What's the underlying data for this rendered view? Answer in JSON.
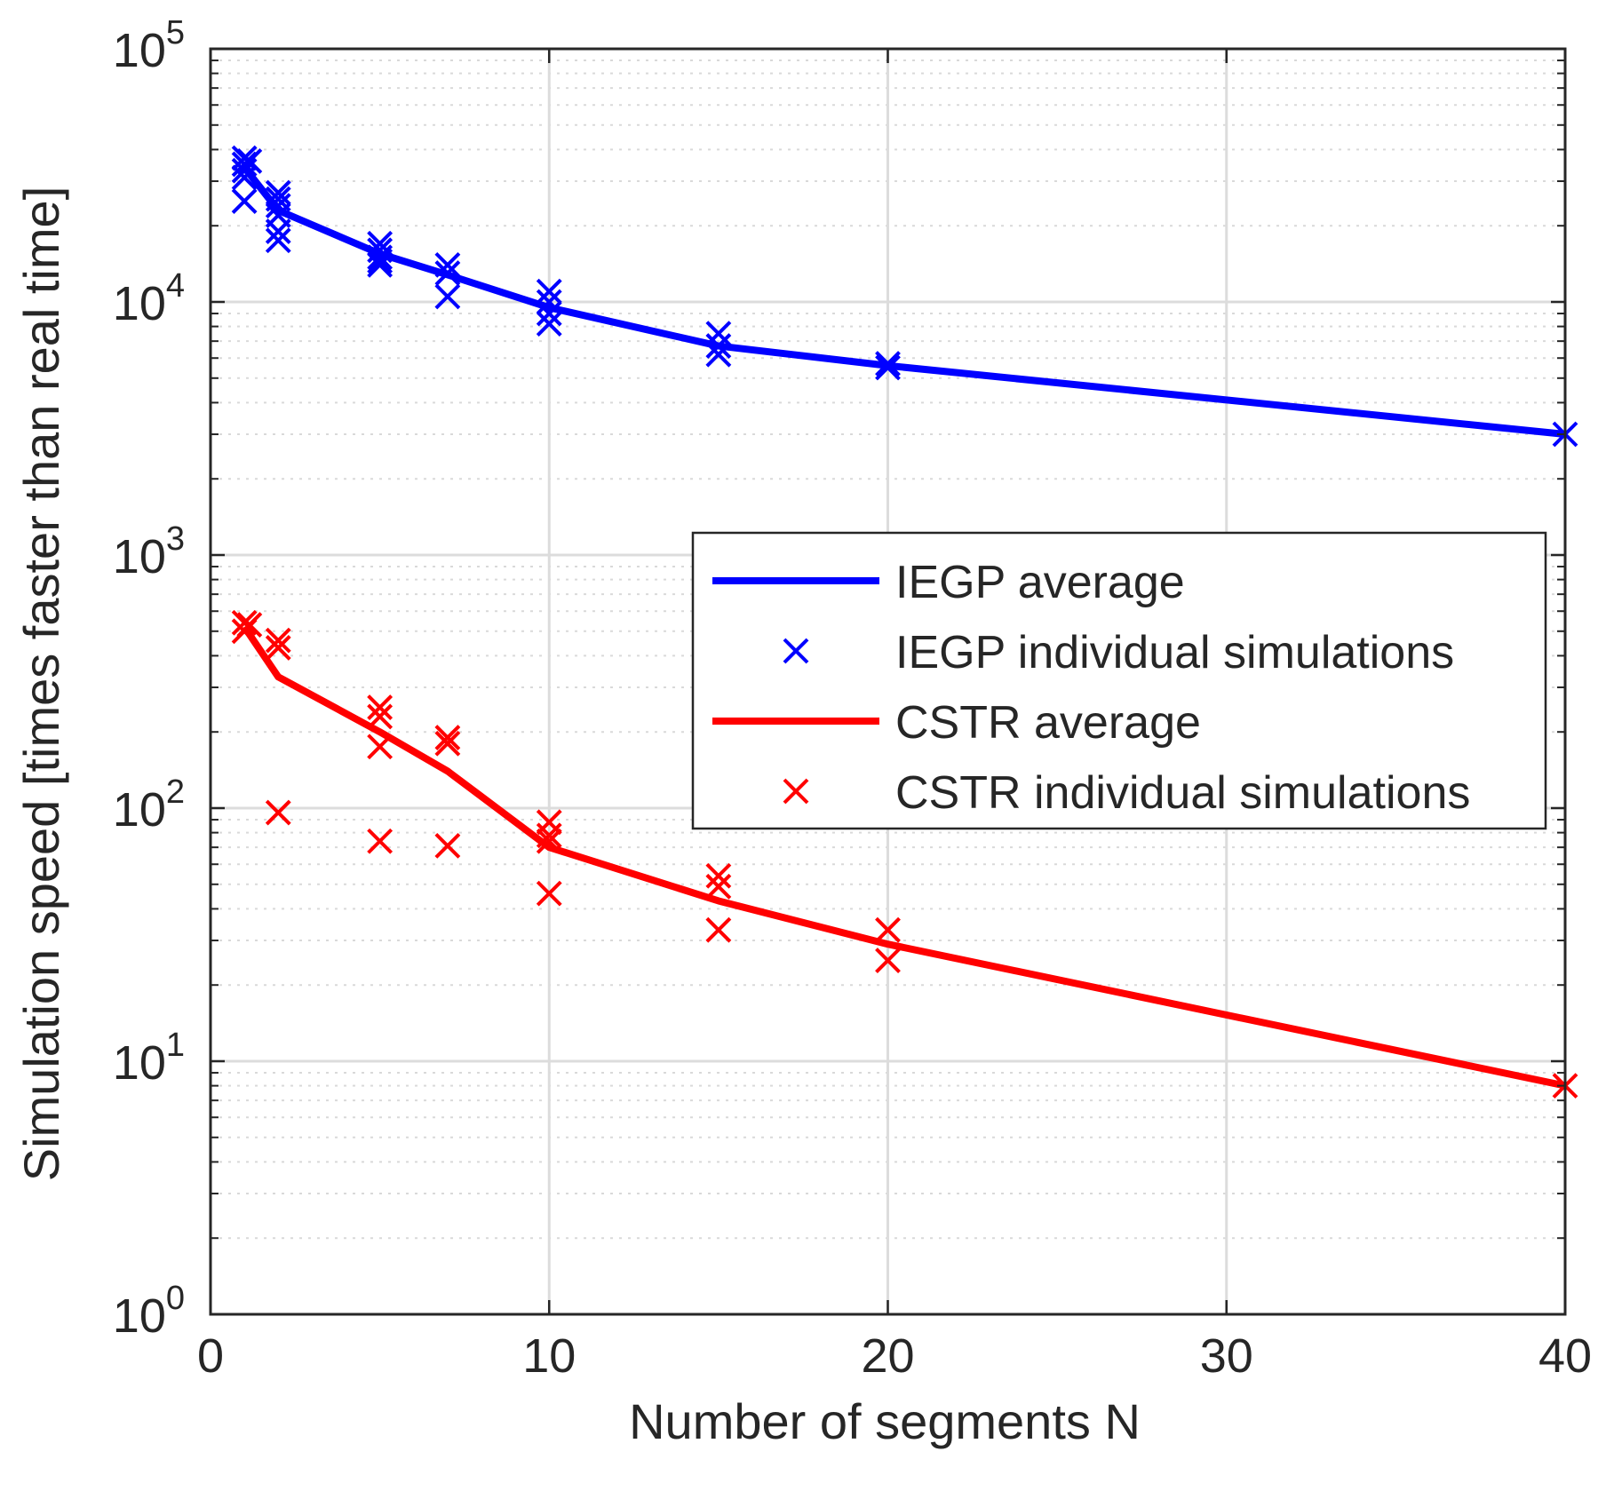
{
  "chart_data": {
    "type": "line",
    "title": "",
    "xlabel": "Number of segments N",
    "ylabel": "Simulation speed [times faster than real time]",
    "xlim": [
      0,
      40
    ],
    "ylim": [
      1,
      100000
    ],
    "yscale": "log",
    "x_ticks": [
      {
        "value": 0,
        "label": "0"
      },
      {
        "value": 10,
        "label": "10"
      },
      {
        "value": 20,
        "label": "20"
      },
      {
        "value": 30,
        "label": "30"
      },
      {
        "value": 40,
        "label": "40"
      }
    ],
    "y_ticks": [
      {
        "value": 1,
        "base": "10",
        "exp": "0"
      },
      {
        "value": 10,
        "base": "10",
        "exp": "1"
      },
      {
        "value": 100,
        "base": "10",
        "exp": "2"
      },
      {
        "value": 1000,
        "base": "10",
        "exp": "3"
      },
      {
        "value": 10000,
        "base": "10",
        "exp": "4"
      },
      {
        "value": 100000,
        "base": "10",
        "exp": "5"
      }
    ],
    "grid": true,
    "minor_grid": true,
    "legend_position": "right",
    "series": [
      {
        "name": "IEGP average",
        "style": "line",
        "color": "#0000ff",
        "x": [
          1,
          2,
          5,
          7,
          10,
          15,
          20,
          40
        ],
        "y": [
          34000,
          23000,
          15500,
          12800,
          9500,
          6700,
          5600,
          3000
        ]
      },
      {
        "name": "IEGP individual simulations",
        "style": "marker",
        "color": "#0000ff",
        "x": [
          1,
          1,
          1,
          1,
          1,
          1.15,
          2,
          2,
          2,
          2,
          2,
          2,
          5,
          5,
          5,
          5,
          5,
          7,
          7,
          7,
          10,
          10,
          10,
          10,
          15,
          15,
          15,
          20,
          20,
          40
        ],
        "y": [
          37000,
          35000,
          33000,
          31000,
          25000,
          36000,
          27000,
          25500,
          24000,
          22000,
          19000,
          17500,
          17000,
          16000,
          15000,
          14500,
          14000,
          14000,
          13000,
          10500,
          11000,
          10000,
          9000,
          8200,
          7500,
          6700,
          6200,
          5700,
          5500,
          3000
        ]
      },
      {
        "name": "CSTR average",
        "style": "line",
        "color": "#ff0000",
        "x": [
          1,
          2,
          5,
          7,
          10,
          15,
          20,
          40
        ],
        "y": [
          520,
          330,
          200,
          140,
          70,
          43,
          29,
          8
        ]
      },
      {
        "name": "CSTR individual simulations",
        "style": "marker",
        "color": "#ff0000",
        "x": [
          1,
          1,
          1.15,
          2,
          2,
          2,
          5,
          5,
          5,
          5,
          7,
          7,
          7,
          10,
          10,
          10,
          10,
          15,
          15,
          15,
          20,
          20,
          40
        ],
        "y": [
          540,
          500,
          530,
          460,
          430,
          96,
          250,
          230,
          175,
          74,
          190,
          180,
          71,
          88,
          78,
          74,
          46,
          54,
          49,
          33,
          33,
          25,
          8
        ]
      }
    ]
  }
}
